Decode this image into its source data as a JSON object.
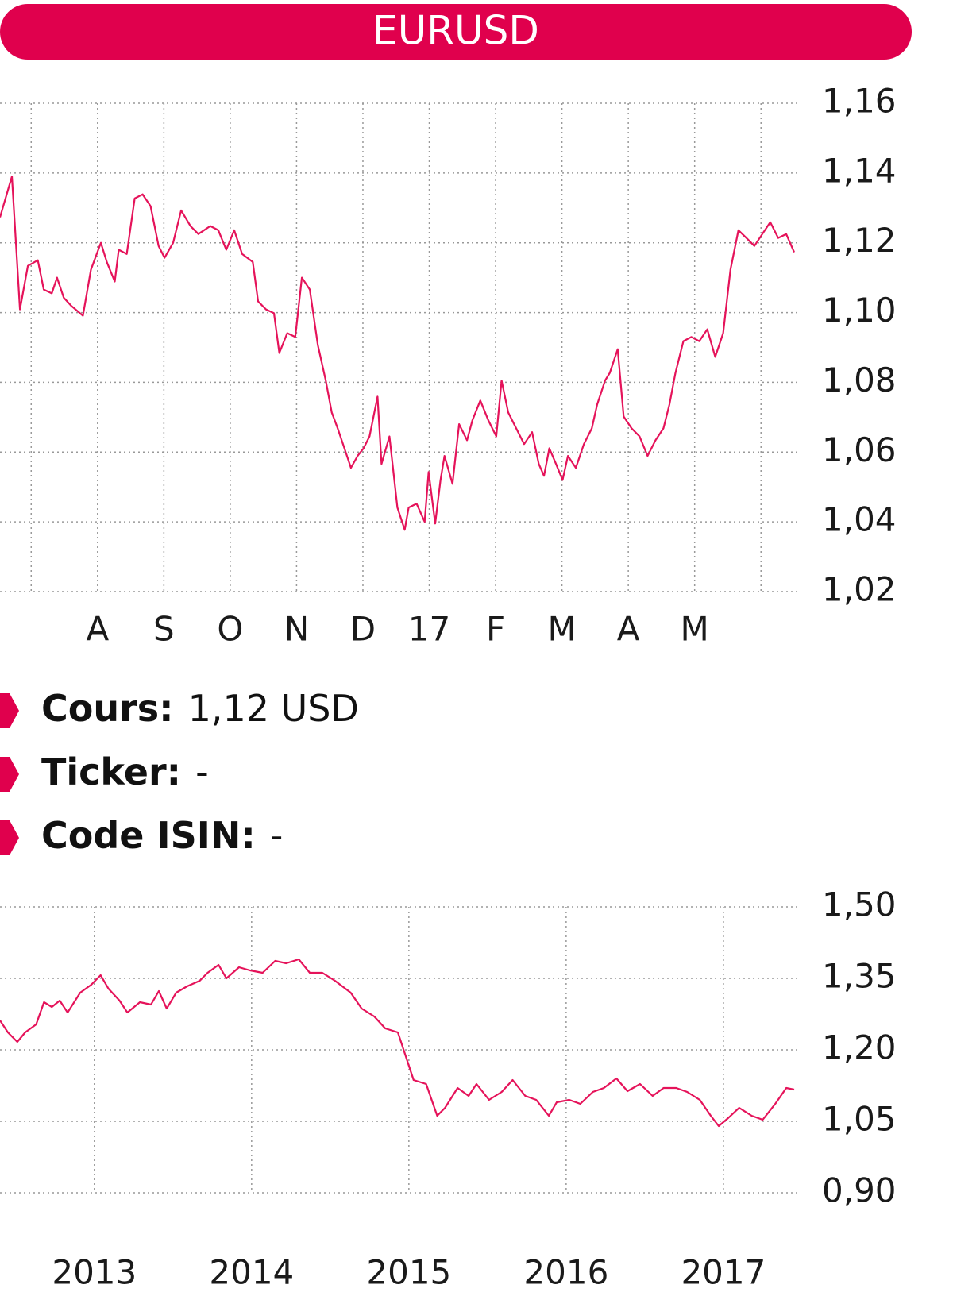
{
  "title": "EURUSD",
  "details": [
    {
      "label": "Cours:",
      "value": "1,12 USD"
    },
    {
      "label": "Ticker:",
      "value": "-"
    },
    {
      "label": "Code ISIN:",
      "value": "-"
    }
  ],
  "chart_data": [
    {
      "type": "line",
      "color": "#e5135a",
      "grid": true,
      "xlim": [
        -0.47,
        11.5
      ],
      "xticks": [
        {
          "value": 1,
          "label": "A"
        },
        {
          "value": 2,
          "label": "S"
        },
        {
          "value": 3,
          "label": "O"
        },
        {
          "value": 4,
          "label": "N"
        },
        {
          "value": 5,
          "label": "D"
        },
        {
          "value": 6,
          "label": "17"
        },
        {
          "value": 7,
          "label": "F"
        },
        {
          "value": 8,
          "label": "M"
        },
        {
          "value": 9,
          "label": "A"
        },
        {
          "value": 10,
          "label": "M"
        }
      ],
      "xgrid": [
        0,
        1,
        2,
        3,
        4,
        5,
        6,
        7,
        8,
        9,
        10,
        11
      ],
      "ylim": [
        1.02,
        1.16
      ],
      "yticks": [
        {
          "value": 1.02,
          "label": "1,02"
        },
        {
          "value": 1.04,
          "label": "1,04"
        },
        {
          "value": 1.06,
          "label": "1,06"
        },
        {
          "value": 1.08,
          "label": "1,08"
        },
        {
          "value": 1.1,
          "label": "1,10"
        },
        {
          "value": 1.12,
          "label": "1,12"
        },
        {
          "value": 1.14,
          "label": "1,14"
        },
        {
          "value": 1.16,
          "label": "1,16"
        }
      ],
      "x": [
        -0.47,
        -0.29,
        -0.17,
        -0.05,
        0.1,
        0.19,
        0.31,
        0.39,
        0.49,
        0.6,
        0.78,
        0.9,
        1.05,
        1.14,
        1.26,
        1.32,
        1.44,
        1.56,
        1.68,
        1.8,
        1.92,
        2.01,
        2.14,
        2.26,
        2.4,
        2.52,
        2.7,
        2.82,
        2.94,
        3.06,
        3.18,
        3.34,
        3.42,
        3.54,
        3.66,
        3.74,
        3.86,
        3.98,
        4.08,
        4.2,
        4.32,
        4.44,
        4.53,
        4.62,
        4.74,
        4.82,
        4.92,
        5.01,
        5.1,
        5.22,
        5.28,
        5.4,
        5.52,
        5.63,
        5.69,
        5.81,
        5.93,
        5.99,
        6.09,
        6.17,
        6.23,
        6.35,
        6.45,
        6.57,
        6.65,
        6.77,
        6.89,
        7.01,
        7.09,
        7.19,
        7.31,
        7.43,
        7.55,
        7.65,
        7.73,
        7.81,
        7.91,
        8.01,
        8.09,
        8.21,
        8.33,
        8.45,
        8.53,
        8.65,
        8.72,
        8.84,
        8.93,
        9.05,
        9.17,
        9.29,
        9.41,
        9.53,
        9.62,
        9.71,
        9.83,
        9.95,
        10.07,
        10.19,
        10.31,
        10.43,
        10.54,
        10.66,
        10.78,
        10.9,
        11.02,
        11.14,
        11.26,
        11.38,
        11.5
      ],
      "values": [
        1.1273,
        1.139,
        1.1009,
        1.1134,
        1.115,
        1.1066,
        1.1055,
        1.11,
        1.1043,
        1.102,
        1.0991,
        1.1123,
        1.12,
        1.1145,
        1.1089,
        1.118,
        1.1168,
        1.1327,
        1.1339,
        1.1305,
        1.1191,
        1.1157,
        1.12,
        1.1293,
        1.1248,
        1.1225,
        1.1248,
        1.1236,
        1.118,
        1.1236,
        1.1168,
        1.1145,
        1.1032,
        1.1009,
        1.0998,
        1.0884,
        1.0941,
        1.093,
        1.11,
        1.1066,
        1.0907,
        1.0805,
        1.0714,
        1.0668,
        1.06,
        1.0555,
        1.0589,
        1.0611,
        1.0645,
        1.0759,
        1.0566,
        1.0645,
        1.0441,
        1.0377,
        1.0441,
        1.0452,
        1.04,
        1.0543,
        1.0395,
        1.052,
        1.0589,
        1.0509,
        1.068,
        1.0634,
        1.0691,
        1.0748,
        1.0691,
        1.0645,
        1.0805,
        1.0714,
        1.0668,
        1.0623,
        1.0657,
        1.0566,
        1.0532,
        1.0611,
        1.0566,
        1.052,
        1.0589,
        1.0555,
        1.0623,
        1.0668,
        1.0736,
        1.0805,
        1.0827,
        1.0895,
        1.0702,
        1.0668,
        1.0645,
        1.0589,
        1.0634,
        1.0668,
        1.0736,
        1.0827,
        1.0918,
        1.093,
        1.0918,
        1.0952,
        1.0873,
        1.0941,
        1.1123,
        1.1236,
        1.1214,
        1.1191,
        1.1225,
        1.1259,
        1.1214,
        1.1225,
        1.1173
      ]
    },
    {
      "type": "line",
      "color": "#e5135a",
      "grid": true,
      "xlim": [
        2012.4,
        2017.45
      ],
      "xticks": [
        2013,
        2014,
        2015,
        2016,
        2017
      ],
      "ylim": [
        0.9,
        1.5
      ],
      "yticks": [
        {
          "value": 0.9,
          "label": "0,90"
        },
        {
          "value": 1.05,
          "label": "1,05"
        },
        {
          "value": 1.2,
          "label": "1,20"
        },
        {
          "value": 1.35,
          "label": "1,35"
        },
        {
          "value": 1.5,
          "label": "1,50"
        }
      ],
      "x": [
        2012.4,
        2012.45,
        2012.51,
        2012.56,
        2012.63,
        2012.68,
        2012.73,
        2012.78,
        2012.83,
        2012.91,
        2012.98,
        2013.04,
        2013.09,
        2013.16,
        2013.21,
        2013.29,
        2013.36,
        2013.41,
        2013.46,
        2013.52,
        2013.59,
        2013.67,
        2013.72,
        2013.79,
        2013.84,
        2013.92,
        2013.99,
        2014.07,
        2014.15,
        2014.22,
        2014.3,
        2014.37,
        2014.45,
        2014.53,
        2014.63,
        2014.7,
        2014.78,
        2014.85,
        2014.93,
        2014.98,
        2015.03,
        2015.11,
        2015.18,
        2015.23,
        2015.31,
        2015.38,
        2015.43,
        2015.51,
        2015.59,
        2015.66,
        2015.74,
        2015.81,
        2015.89,
        2015.94,
        2016.02,
        2016.09,
        2016.17,
        2016.24,
        2016.32,
        2016.39,
        2016.47,
        2016.55,
        2016.62,
        2016.7,
        2016.77,
        2016.85,
        2016.92,
        2016.97,
        2017.03,
        2017.1,
        2017.18,
        2017.25,
        2017.33,
        2017.4,
        2017.45
      ],
      "values": [
        1.2617,
        1.2367,
        1.2167,
        1.2367,
        1.2533,
        1.3,
        1.29,
        1.3033,
        1.2783,
        1.32,
        1.3367,
        1.3567,
        1.3283,
        1.3033,
        1.2783,
        1.3,
        1.295,
        1.3233,
        1.2867,
        1.32,
        1.3333,
        1.345,
        1.3617,
        1.3783,
        1.35,
        1.3733,
        1.3667,
        1.3617,
        1.3867,
        1.3817,
        1.39,
        1.3617,
        1.3617,
        1.345,
        1.32,
        1.2867,
        1.27,
        1.245,
        1.2367,
        1.1867,
        1.1367,
        1.1283,
        1.0617,
        1.0783,
        1.12,
        1.1033,
        1.1283,
        1.095,
        1.1117,
        1.1367,
        1.1033,
        1.095,
        1.0617,
        1.09,
        1.095,
        1.0867,
        1.1117,
        1.12,
        1.14,
        1.1133,
        1.1283,
        1.1033,
        1.12,
        1.12,
        1.1117,
        1.095,
        1.0617,
        1.04,
        1.0567,
        1.0783,
        1.0617,
        1.0533,
        1.0867,
        1.12,
        1.1167
      ]
    }
  ]
}
